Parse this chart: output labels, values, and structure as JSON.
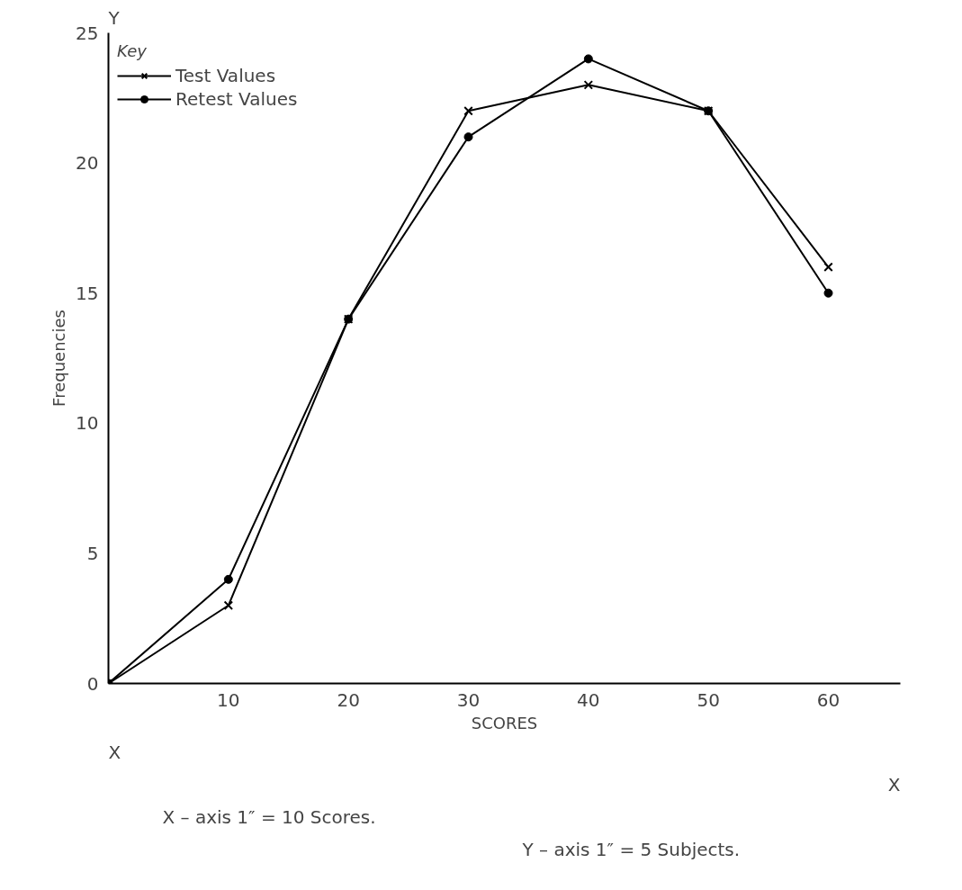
{
  "chart_data": {
    "type": "line",
    "xlabel": "SCORES",
    "ylabel": "Frequencies",
    "legend_title": "Key",
    "legend": "top left",
    "x": [
      0,
      10,
      20,
      30,
      40,
      50,
      60
    ],
    "series": [
      {
        "name": "Test Values",
        "color": "#000000",
        "marker": "cross",
        "values": [
          0,
          3,
          14,
          22,
          23,
          22,
          16
        ]
      },
      {
        "name": "Retest Values",
        "color": "#000000",
        "marker": "circle",
        "values": [
          0,
          4,
          14,
          21,
          24,
          22,
          15
        ]
      }
    ],
    "xlim": [
      0,
      66
    ],
    "ylim": [
      0,
      25
    ],
    "xticks": [
      10,
      20,
      30,
      40,
      50,
      60
    ],
    "yticks": [
      0,
      5,
      10,
      15,
      20,
      25
    ],
    "grid": false,
    "line_style": "solid",
    "annotations": [
      "Y",
      "X",
      "X",
      "X – axis 1″ = 10 Scores.",
      "Y – axis 1″ = 5 Subjects."
    ]
  }
}
